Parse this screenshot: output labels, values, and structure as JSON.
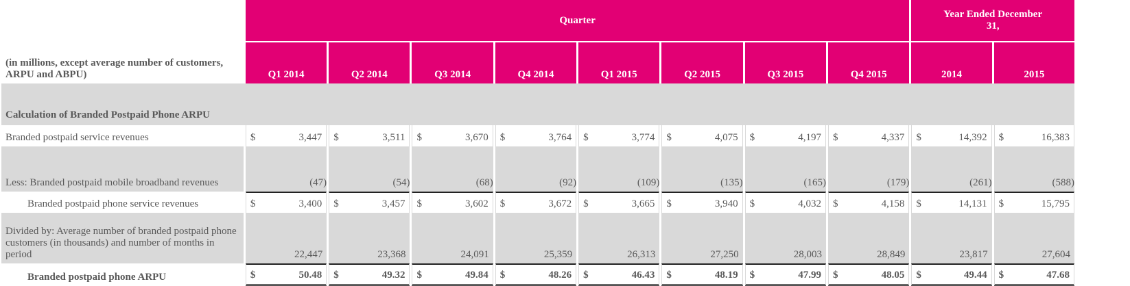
{
  "header": {
    "quarter_label": "Quarter",
    "year_label": "Year Ended December 31,",
    "units_note": "(in millions, except average number of customers, ARPU and ABPU)",
    "columns": [
      "Q1 2014",
      "Q2 2014",
      "Q3 2014",
      "Q4 2014",
      "Q1 2015",
      "Q2 2015",
      "Q3 2015",
      "Q4 2015",
      "2014",
      "2015"
    ]
  },
  "section_title": "Calculation of Branded Postpaid Phone ARPU",
  "rows": [
    {
      "label": "Branded postpaid service revenues",
      "currency": "$",
      "values": [
        "3,447",
        "3,511",
        "3,670",
        "3,764",
        "3,774",
        "4,075",
        "4,197",
        "4,337",
        "14,392",
        "16,383"
      ]
    },
    {
      "label": "Less: Branded postpaid mobile broadband revenues",
      "currency": "",
      "values": [
        "(47)",
        "(54)",
        "(68)",
        "(92)",
        "(109)",
        "(135)",
        "(165)",
        "(179)",
        "(261)",
        "(588)"
      ]
    },
    {
      "label": "Branded postpaid phone service revenues",
      "currency": "$",
      "values": [
        "3,400",
        "3,457",
        "3,602",
        "3,672",
        "3,665",
        "3,940",
        "4,032",
        "4,158",
        "14,131",
        "15,795"
      ]
    },
    {
      "label": "Divided by: Average number of branded postpaid phone customers (in thousands) and number of months in period",
      "currency": "",
      "values": [
        "22,447",
        "23,368",
        "24,091",
        "25,359",
        "26,313",
        "27,250",
        "28,003",
        "28,849",
        "23,817",
        "27,604"
      ]
    },
    {
      "label": "Branded postpaid phone ARPU",
      "currency": "$",
      "values": [
        "50.48",
        "49.32",
        "49.84",
        "48.26",
        "46.43",
        "48.19",
        "47.99",
        "48.05",
        "49.44",
        "47.68"
      ]
    }
  ],
  "colors": {
    "header_bg": "#e20074",
    "band_bg": "#d9d9d9",
    "text": "#595959"
  }
}
